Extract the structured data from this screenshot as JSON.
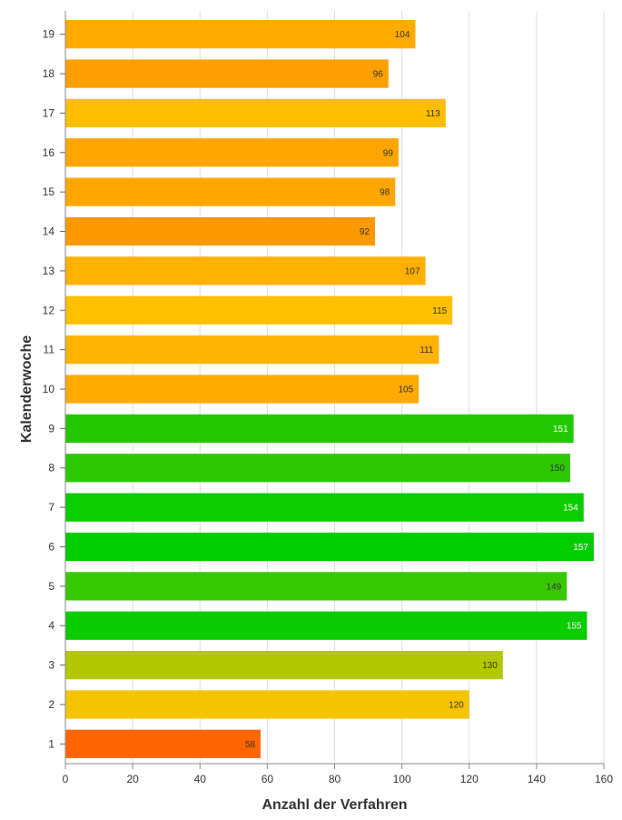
{
  "chart_data": {
    "type": "bar",
    "orientation": "horizontal",
    "title": "",
    "xlabel": "Anzahl der Verfahren",
    "ylabel": "Kalenderwoche",
    "xlim": [
      0,
      160
    ],
    "x_ticks": [
      0,
      20,
      40,
      60,
      80,
      100,
      120,
      140,
      160
    ],
    "grid": "vertical",
    "legend": "none",
    "categories": [
      "1",
      "2",
      "3",
      "4",
      "5",
      "6",
      "7",
      "8",
      "9",
      "10",
      "11",
      "12",
      "13",
      "14",
      "15",
      "16",
      "17",
      "18",
      "19"
    ],
    "values": [
      58,
      120,
      130,
      155,
      149,
      157,
      154,
      150,
      151,
      105,
      111,
      115,
      107,
      92,
      98,
      99,
      113,
      96,
      104
    ],
    "colors": [
      "#ff6600",
      "#f5c400",
      "#b3c800",
      "#0acc00",
      "#36c800",
      "#00cc00",
      "#0dcc00",
      "#2ec800",
      "#25c800",
      "#ffaa00",
      "#ffb200",
      "#ffc000",
      "#ffb000",
      "#ff9900",
      "#ffa700",
      "#ffa500",
      "#ffbe00",
      "#ffa000",
      "#ffab00"
    ],
    "label_colors": [
      "#333333",
      "#333333",
      "#333333",
      "#ffffff",
      "#333333",
      "#ffffff",
      "#ffffff",
      "#333333",
      "#ffffff",
      "#333333",
      "#333333",
      "#333333",
      "#333333",
      "#333333",
      "#333333",
      "#333333",
      "#333333",
      "#333333",
      "#333333"
    ]
  }
}
